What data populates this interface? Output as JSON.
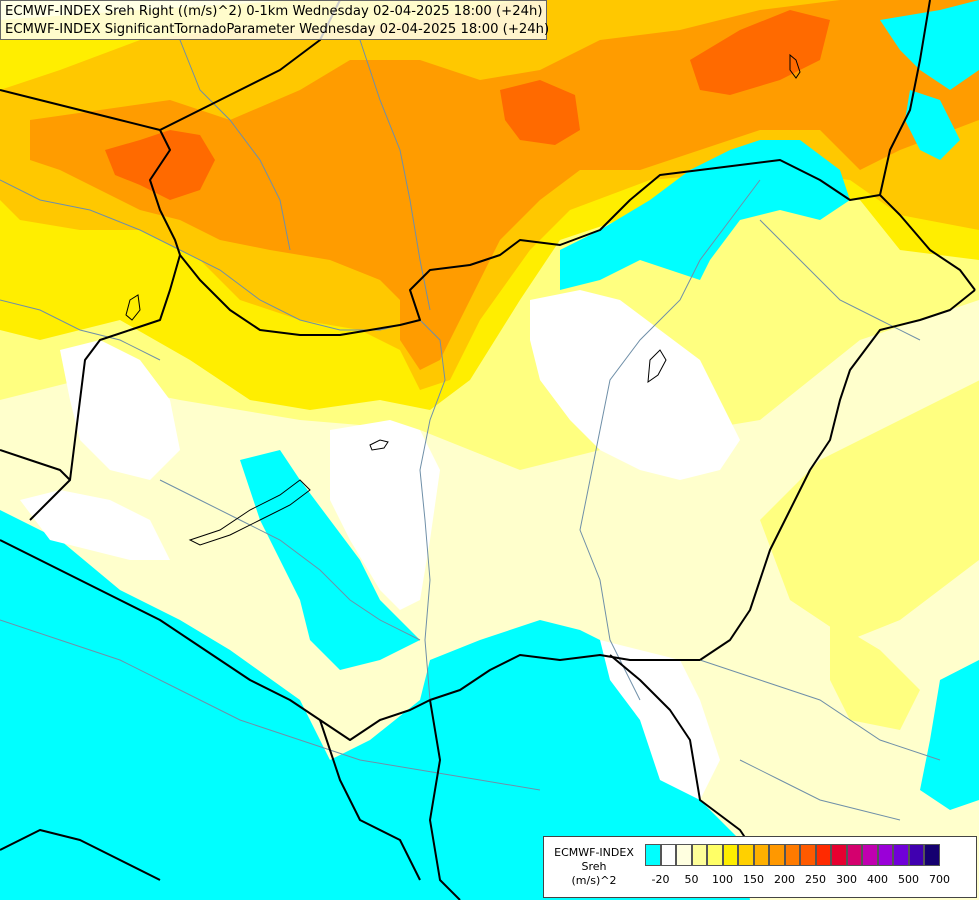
{
  "header": {
    "line1": "ECMWF-INDEX Sreh Right ((m/s)^2) 0-1km Wednesday 02-04-2025 18:00 (+24h)",
    "line2": "ECMWF-INDEX SignificantTornadoParameter Wednesday 02-04-2025 18:00 (+24h)"
  },
  "legend": {
    "source": "ECMWF-INDEX",
    "param": "Sreh",
    "unit": "(m/s)^2",
    "colors": [
      "#00ffff",
      "#ffffff",
      "#ffffe0",
      "#ffff99",
      "#ffff66",
      "#ffee00",
      "#ffd000",
      "#ffb000",
      "#ff9800",
      "#ff7a00",
      "#ff5a00",
      "#ff2a00",
      "#e60030",
      "#d4006e",
      "#c000b0",
      "#9a00d8",
      "#7000d8",
      "#4000b0",
      "#150070"
    ],
    "tick_labels": [
      "-20",
      "50",
      "100",
      "150",
      "200",
      "250",
      "300",
      "400",
      "500",
      "700"
    ],
    "tick_swatch_index": [
      1,
      3,
      5,
      7,
      9,
      11,
      13,
      15,
      17,
      19
    ]
  },
  "map_colors": {
    "cyan": "#00ffff",
    "white": "#ffffff",
    "pale": "#ffffcc",
    "light_yellow": "#ffff80",
    "yellow": "#ffee00",
    "gold": "#ffc800",
    "orange": "#ff9c00",
    "deep_orange": "#ff6a00",
    "border": "#000000",
    "river": "#6f8fa8"
  }
}
